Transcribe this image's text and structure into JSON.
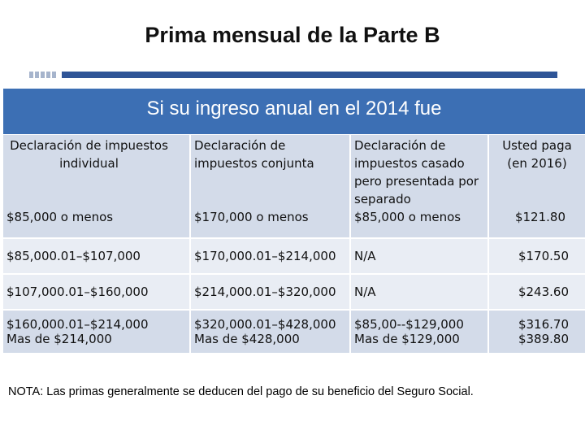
{
  "title": "Prima mensual de la Parte B",
  "banner": "Si su ingreso anual en el 2014 fue",
  "columns": {
    "individual": "Declaración de impuestos individual",
    "joint": "Declaración de impuestos conjunta",
    "married_separate": "Declaración de impuestos casado pero presentada por separado",
    "pay": "Usted paga (en 2016)"
  },
  "rows": [
    {
      "individual": "$85,000 o menos",
      "joint": "$170,000 o menos",
      "married_separate": "$85,000 o menos",
      "pay": "$121.80"
    },
    {
      "individual": "$85,000.01–$107,000",
      "joint": "$170,000.01–$214,000",
      "married_separate": "N/A",
      "pay": "$170.50"
    },
    {
      "individual": "$107,000.01–$160,000",
      "joint": "$214,000.01–$320,000",
      "married_separate": "N/A",
      "pay": "$243.60"
    },
    {
      "individual": "$160,000.01–$214,000",
      "joint": "$320,000.01–$428,000",
      "married_separate": "$85,00--$129,000",
      "pay": "$316.70"
    },
    {
      "individual": "Mas de $214,000",
      "joint": "Mas de $428,000",
      "married_separate": "Mas de $129,000",
      "pay": "$389.80"
    }
  ],
  "note": {
    "label": "NOTA:",
    "text": " Las primas generalmente se deducen del pago de su beneficio del Seguro Social."
  },
  "colors": {
    "banner": "#3c6fb4",
    "rule_bar": "#2f5597",
    "row_dark": "#d3dbe9",
    "row_light": "#e9edf4"
  }
}
